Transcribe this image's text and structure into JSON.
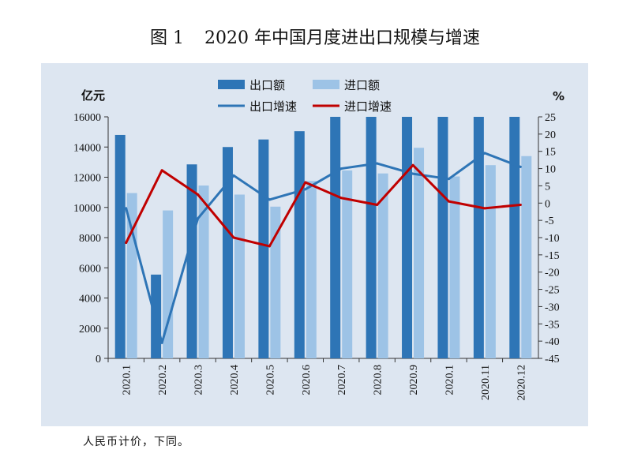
{
  "figure": {
    "label": "图 1",
    "title": "2020 年中国月度进出口规模与增速",
    "note": "人民币计价，下同。"
  },
  "chart_data": {
    "type": "bar",
    "categories": [
      "2020.1",
      "2020.2",
      "2020.3",
      "2020.4",
      "2020.5",
      "2020.6",
      "2020.7",
      "2020.8",
      "2020.9",
      "2020.1",
      "2020.11",
      "2020.12"
    ],
    "left_axis": {
      "unit": "亿元",
      "min": 0,
      "max": 16000,
      "step": 2000,
      "ticks": [
        "0",
        "2000",
        "4000",
        "6000",
        "8000",
        "10000",
        "12000",
        "14000",
        "16000"
      ]
    },
    "right_axis": {
      "unit": "%",
      "min": -45,
      "max": 25,
      "step": 5,
      "ticks": [
        "-45",
        "-40",
        "-35",
        "-30",
        "-25",
        "-20",
        "-15",
        "-10",
        "-5",
        "0",
        "5",
        "10",
        "15",
        "20",
        "25"
      ]
    },
    "series": [
      {
        "name": "出口额",
        "kind": "bar",
        "axis": "left",
        "color": "#2e75b6",
        "values": [
          14800,
          5550,
          12850,
          14000,
          14500,
          15050,
          16000,
          16000,
          16000,
          16000,
          16000,
          16000
        ]
      },
      {
        "name": "进口额",
        "kind": "bar",
        "axis": "left",
        "color": "#9dc3e6",
        "values": [
          10950,
          9800,
          11450,
          10850,
          10050,
          11750,
          12450,
          12250,
          13950,
          12050,
          12800,
          13400
        ]
      },
      {
        "name": "出口增速",
        "kind": "line",
        "axis": "right",
        "color": "#2e75b6",
        "values": [
          -1.5,
          -40.5,
          -4.5,
          8.0,
          1.0,
          4.0,
          10.0,
          11.5,
          8.5,
          7.0,
          14.5,
          10.5
        ]
      },
      {
        "name": "进口增速",
        "kind": "line",
        "axis": "right",
        "color": "#c00000",
        "values": [
          -11.5,
          9.5,
          2.5,
          -10.0,
          -12.5,
          6.0,
          1.5,
          -0.5,
          11.0,
          0.5,
          -1.5,
          -0.5
        ]
      }
    ],
    "legend": [
      "出口额",
      "进口额",
      "出口增速",
      "进口增速"
    ],
    "legend_position": "top",
    "grid": false
  }
}
